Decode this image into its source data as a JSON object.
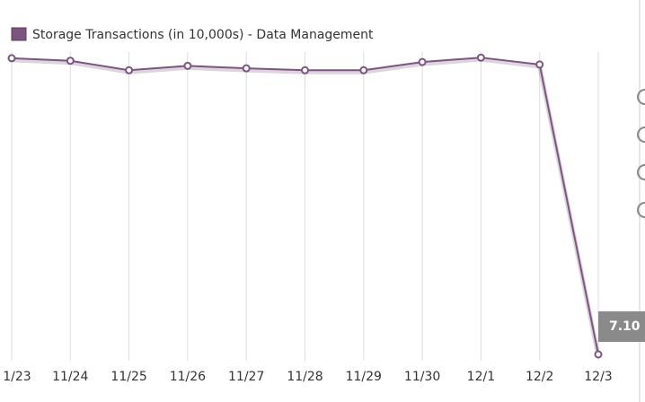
{
  "chart_data": {
    "type": "line",
    "categories": [
      "1/23",
      "11/24",
      "11/25",
      "11/26",
      "11/27",
      "11/28",
      "11/29",
      "11/30",
      "12/1",
      "12/2",
      "12/3"
    ],
    "series": [
      {
        "name": "Storage Transactions (in 10,000s) - Data Management",
        "color": "#7b5580",
        "values": [
          476,
          472,
          457,
          464,
          460,
          457,
          457,
          470,
          477,
          466,
          7.1
        ],
        "value_labels": [
          null,
          null,
          null,
          null,
          null,
          null,
          null,
          null,
          null,
          null,
          "7.10"
        ]
      }
    ],
    "ylim": [
      0,
      500
    ],
    "grid": true
  }
}
